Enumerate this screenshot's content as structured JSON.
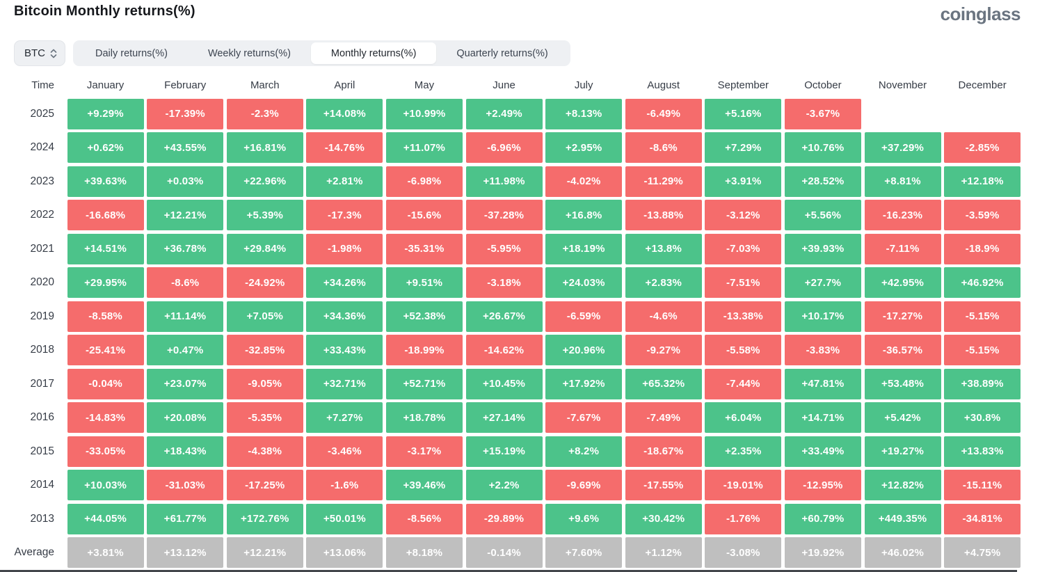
{
  "page": {
    "title": "Bitcoin Monthly returns(%)",
    "brand": "coinglass"
  },
  "controls": {
    "symbol_select": {
      "value": "BTC",
      "icon": "updown-chevron-icon"
    },
    "tabs": [
      {
        "label": "Daily returns(%)",
        "active": false
      },
      {
        "label": "Weekly returns(%)",
        "active": false
      },
      {
        "label": "Monthly returns(%)",
        "active": true
      },
      {
        "label": "Quarterly returns(%)",
        "active": false
      }
    ]
  },
  "colors": {
    "positive": "#4cc38a",
    "negative": "#f56c6c",
    "average_bg": "#bfbfbf",
    "cell_text": "#ffffff"
  },
  "chart_data": {
    "type": "heatmap",
    "title": "Bitcoin Monthly returns(%)",
    "row_header": "Time",
    "columns": [
      "January",
      "February",
      "March",
      "April",
      "May",
      "June",
      "July",
      "August",
      "September",
      "October",
      "November",
      "December"
    ],
    "rows": [
      {
        "label": "2025",
        "values": [
          "+9.29%",
          "-17.39%",
          "-2.3%",
          "+14.08%",
          "+10.99%",
          "+2.49%",
          "+8.13%",
          "-6.49%",
          "+5.16%",
          "-3.67%",
          "",
          ""
        ]
      },
      {
        "label": "2024",
        "values": [
          "+0.62%",
          "+43.55%",
          "+16.81%",
          "-14.76%",
          "+11.07%",
          "-6.96%",
          "+2.95%",
          "-8.6%",
          "+7.29%",
          "+10.76%",
          "+37.29%",
          "-2.85%"
        ]
      },
      {
        "label": "2023",
        "values": [
          "+39.63%",
          "+0.03%",
          "+22.96%",
          "+2.81%",
          "-6.98%",
          "+11.98%",
          "-4.02%",
          "-11.29%",
          "+3.91%",
          "+28.52%",
          "+8.81%",
          "+12.18%"
        ]
      },
      {
        "label": "2022",
        "values": [
          "-16.68%",
          "+12.21%",
          "+5.39%",
          "-17.3%",
          "-15.6%",
          "-37.28%",
          "+16.8%",
          "-13.88%",
          "-3.12%",
          "+5.56%",
          "-16.23%",
          "-3.59%"
        ]
      },
      {
        "label": "2021",
        "values": [
          "+14.51%",
          "+36.78%",
          "+29.84%",
          "-1.98%",
          "-35.31%",
          "-5.95%",
          "+18.19%",
          "+13.8%",
          "-7.03%",
          "+39.93%",
          "-7.11%",
          "-18.9%"
        ]
      },
      {
        "label": "2020",
        "values": [
          "+29.95%",
          "-8.6%",
          "-24.92%",
          "+34.26%",
          "+9.51%",
          "-3.18%",
          "+24.03%",
          "+2.83%",
          "-7.51%",
          "+27.7%",
          "+42.95%",
          "+46.92%"
        ]
      },
      {
        "label": "2019",
        "values": [
          "-8.58%",
          "+11.14%",
          "+7.05%",
          "+34.36%",
          "+52.38%",
          "+26.67%",
          "-6.59%",
          "-4.6%",
          "-13.38%",
          "+10.17%",
          "-17.27%",
          "-5.15%"
        ]
      },
      {
        "label": "2018",
        "values": [
          "-25.41%",
          "+0.47%",
          "-32.85%",
          "+33.43%",
          "-18.99%",
          "-14.62%",
          "+20.96%",
          "-9.27%",
          "-5.58%",
          "-3.83%",
          "-36.57%",
          "-5.15%"
        ]
      },
      {
        "label": "2017",
        "values": [
          "-0.04%",
          "+23.07%",
          "-9.05%",
          "+32.71%",
          "+52.71%",
          "+10.45%",
          "+17.92%",
          "+65.32%",
          "-7.44%",
          "+47.81%",
          "+53.48%",
          "+38.89%"
        ]
      },
      {
        "label": "2016",
        "values": [
          "-14.83%",
          "+20.08%",
          "-5.35%",
          "+7.27%",
          "+18.78%",
          "+27.14%",
          "-7.67%",
          "-7.49%",
          "+6.04%",
          "+14.71%",
          "+5.42%",
          "+30.8%"
        ]
      },
      {
        "label": "2015",
        "values": [
          "-33.05%",
          "+18.43%",
          "-4.38%",
          "-3.46%",
          "-3.17%",
          "+15.19%",
          "+8.2%",
          "-18.67%",
          "+2.35%",
          "+33.49%",
          "+19.27%",
          "+13.83%"
        ]
      },
      {
        "label": "2014",
        "values": [
          "+10.03%",
          "-31.03%",
          "-17.25%",
          "-1.6%",
          "+39.46%",
          "+2.2%",
          "-9.69%",
          "-17.55%",
          "-19.01%",
          "-12.95%",
          "+12.82%",
          "-15.11%"
        ]
      },
      {
        "label": "2013",
        "values": [
          "+44.05%",
          "+61.77%",
          "+172.76%",
          "+50.01%",
          "-8.56%",
          "-29.89%",
          "+9.6%",
          "+30.42%",
          "-1.76%",
          "+60.79%",
          "+449.35%",
          "-34.81%"
        ]
      },
      {
        "label": "Average",
        "is_average": true,
        "values": [
          "+3.81%",
          "+13.12%",
          "+12.21%",
          "+13.06%",
          "+8.18%",
          "-0.14%",
          "+7.60%",
          "+1.12%",
          "-3.08%",
          "+19.92%",
          "+46.02%",
          "+4.75%"
        ]
      }
    ]
  }
}
